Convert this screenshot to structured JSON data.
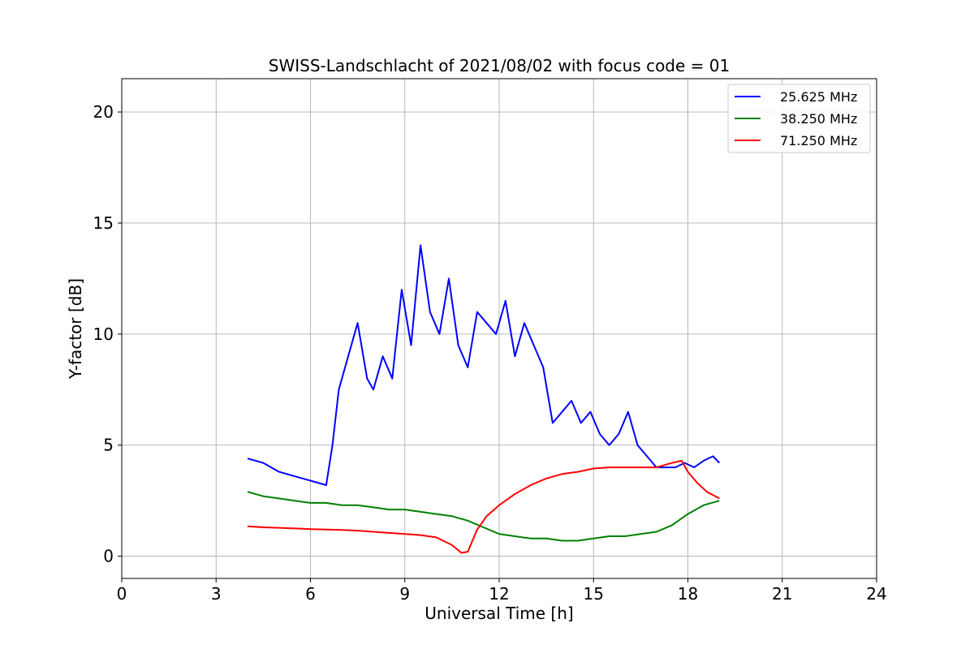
{
  "chart_data": {
    "type": "line",
    "title": "SWISS-Landschlacht of 2021/08/02 with focus code = 01",
    "xlabel": "Universal Time [h]",
    "ylabel": "Y-factor [dB]",
    "xlim": [
      0,
      24
    ],
    "ylim": [
      -1,
      21.5
    ],
    "xticks": [
      0,
      3,
      6,
      9,
      12,
      15,
      18,
      21,
      24
    ],
    "yticks": [
      0,
      5,
      10,
      15,
      20
    ],
    "grid": true,
    "legend_position": "top-right",
    "series": [
      {
        "name": "25.625 MHz",
        "color": "#0000ff",
        "x": [
          4.0,
          4.5,
          5.0,
          5.5,
          6.0,
          6.5,
          6.7,
          6.9,
          7.2,
          7.5,
          7.8,
          8.0,
          8.3,
          8.6,
          8.9,
          9.2,
          9.5,
          9.8,
          10.1,
          10.4,
          10.7,
          11.0,
          11.3,
          11.6,
          11.9,
          12.2,
          12.5,
          12.8,
          13.1,
          13.4,
          13.7,
          14.0,
          14.3,
          14.6,
          14.9,
          15.2,
          15.5,
          15.8,
          16.1,
          16.4,
          16.7,
          17.0,
          17.3,
          17.6,
          17.9,
          18.2,
          18.5,
          18.8,
          19.0
        ],
        "values": [
          4.4,
          4.2,
          3.8,
          3.6,
          3.4,
          3.2,
          5.0,
          7.5,
          9.0,
          10.5,
          8.0,
          7.5,
          9.0,
          8.0,
          12.0,
          9.5,
          14.0,
          11.0,
          10.0,
          12.5,
          9.5,
          8.5,
          11.0,
          10.5,
          10.0,
          11.5,
          9.0,
          10.5,
          9.5,
          8.5,
          6.0,
          6.5,
          7.0,
          6.0,
          6.5,
          5.5,
          5.0,
          5.5,
          6.5,
          5.0,
          4.5,
          4.0,
          4.0,
          4.0,
          4.2,
          4.0,
          4.3,
          4.5,
          4.2
        ]
      },
      {
        "name": "38.250 MHz",
        "color": "#008000",
        "x": [
          4.0,
          4.5,
          5.0,
          5.5,
          6.0,
          6.5,
          7.0,
          7.5,
          8.0,
          8.5,
          9.0,
          9.5,
          10.0,
          10.5,
          11.0,
          11.5,
          12.0,
          12.5,
          13.0,
          13.5,
          14.0,
          14.5,
          15.0,
          15.5,
          16.0,
          16.5,
          17.0,
          17.5,
          18.0,
          18.5,
          19.0
        ],
        "values": [
          2.9,
          2.7,
          2.6,
          2.5,
          2.4,
          2.4,
          2.3,
          2.3,
          2.2,
          2.1,
          2.1,
          2.0,
          1.9,
          1.8,
          1.6,
          1.3,
          1.0,
          0.9,
          0.8,
          0.8,
          0.7,
          0.7,
          0.8,
          0.9,
          0.9,
          1.0,
          1.1,
          1.4,
          1.9,
          2.3,
          2.5
        ]
      },
      {
        "name": "71.250 MHz",
        "color": "#ff0000",
        "x": [
          4.0,
          4.5,
          5.0,
          5.5,
          6.0,
          6.5,
          7.0,
          7.5,
          8.0,
          8.5,
          9.0,
          9.5,
          10.0,
          10.5,
          10.8,
          11.0,
          11.3,
          11.6,
          12.0,
          12.5,
          13.0,
          13.5,
          14.0,
          14.5,
          15.0,
          15.5,
          16.0,
          16.5,
          17.0,
          17.5,
          17.8,
          18.0,
          18.3,
          18.6,
          19.0
        ],
        "values": [
          1.35,
          1.3,
          1.28,
          1.25,
          1.22,
          1.2,
          1.18,
          1.15,
          1.1,
          1.05,
          1.0,
          0.95,
          0.85,
          0.5,
          0.15,
          0.2,
          1.2,
          1.8,
          2.3,
          2.8,
          3.2,
          3.5,
          3.7,
          3.8,
          3.95,
          4.0,
          4.0,
          4.0,
          4.0,
          4.2,
          4.3,
          3.8,
          3.3,
          2.9,
          2.6
        ]
      }
    ]
  }
}
